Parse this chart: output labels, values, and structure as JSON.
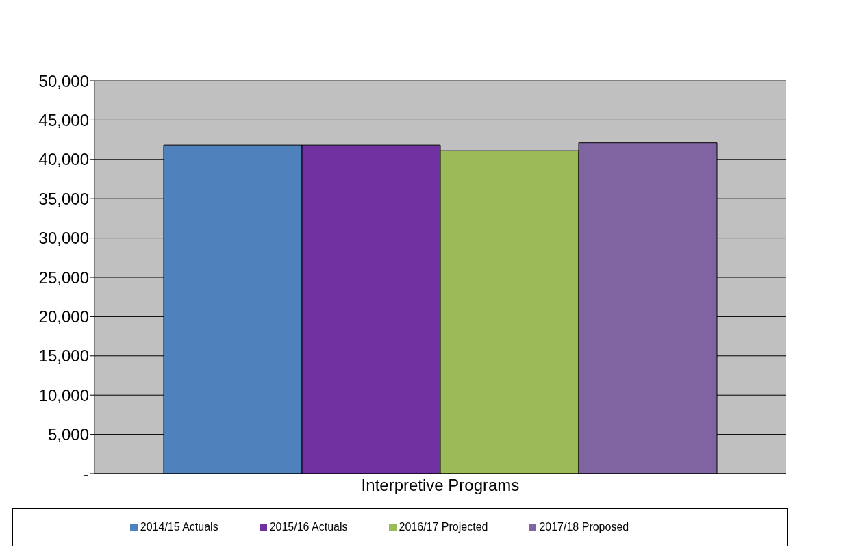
{
  "chart_data": {
    "type": "bar",
    "categories": [
      "Interpretive Programs"
    ],
    "series": [
      {
        "name": "2014/15 Actuals",
        "color": "#4f81bd",
        "values": [
          41800
        ]
      },
      {
        "name": "2015/16 Actuals",
        "color": "#7030a0",
        "values": [
          41800
        ]
      },
      {
        "name": "2016/17 Projected",
        "color": "#9bbb59",
        "values": [
          41100
        ]
      },
      {
        "name": "2017/18 Proposed",
        "color": "#8064a2",
        "values": [
          42100
        ]
      }
    ],
    "ylim": [
      0,
      50000
    ],
    "yticks": [
      {
        "value": 0,
        "label": "-"
      },
      {
        "value": 5000,
        "label": "5,000"
      },
      {
        "value": 10000,
        "label": "10,000"
      },
      {
        "value": 15000,
        "label": "15,000"
      },
      {
        "value": 20000,
        "label": "20,000"
      },
      {
        "value": 25000,
        "label": "25,000"
      },
      {
        "value": 30000,
        "label": "30,000"
      },
      {
        "value": 35000,
        "label": "35,000"
      },
      {
        "value": 40000,
        "label": "40,000"
      },
      {
        "value": 45000,
        "label": "45,000"
      },
      {
        "value": 50000,
        "label": "50,000"
      }
    ],
    "grid": "y",
    "legend": "bottom"
  }
}
